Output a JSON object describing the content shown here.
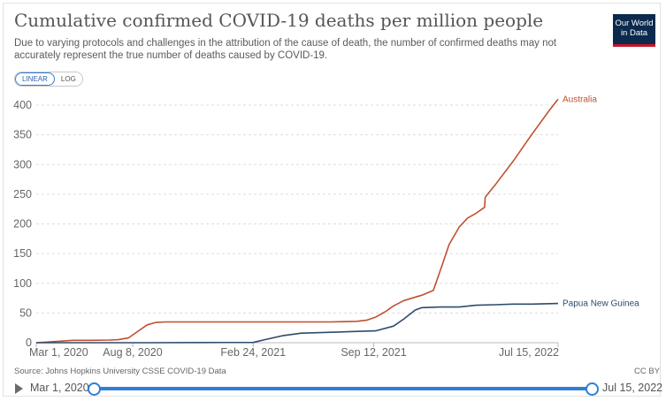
{
  "header": {
    "title": "Cumulative confirmed COVID-19 deaths per million people",
    "subtitle": "Due to varying protocols and challenges in the attribution of the cause of death, the number of confirmed deaths may not accurately represent the true number of deaths caused by COVID-19.",
    "logo_line1": "Our World",
    "logo_line2": "in Data"
  },
  "controls": {
    "linear_label": "LINEAR",
    "log_label": "LOG",
    "active": "linear"
  },
  "footer": {
    "source": "Source: Johns Hopkins University CSSE COVID-19 Data",
    "license": "CC BY"
  },
  "timeline": {
    "start_label": "Mar 1, 2020",
    "end_label": "Jul 15, 2022"
  },
  "colors": {
    "australia": "#c0502e",
    "png": "#2e4b6b",
    "grid": "#dddddd",
    "accent": "#2f7ed8"
  },
  "chart_data": {
    "type": "line",
    "title": "Cumulative confirmed COVID-19 deaths per million people",
    "xlabel": "",
    "ylabel": "",
    "ylim": [
      0,
      400
    ],
    "yticks": [
      "0",
      "50",
      "100",
      "150",
      "200",
      "250",
      "300",
      "350",
      "400"
    ],
    "xticks": [
      "Mar 1, 2020",
      "Aug 8, 2020",
      "Feb 24, 2021",
      "Sep 12, 2021",
      "Jul 15, 2022"
    ],
    "xtick_dates": [
      "2020-03-01",
      "2020-08-08",
      "2021-02-24",
      "2021-09-12",
      "2022-07-15"
    ],
    "x_range": [
      "2020-03-01",
      "2022-07-15"
    ],
    "grid": "horizontal dashed",
    "legend": "inline labels at line ends",
    "series": [
      {
        "name": "Australia",
        "color": "#c0502e",
        "x": [
          "2020-03-01",
          "2020-04-01",
          "2020-05-01",
          "2020-06-01",
          "2020-07-01",
          "2020-07-15",
          "2020-08-01",
          "2020-08-15",
          "2020-09-01",
          "2020-09-15",
          "2020-10-01",
          "2020-11-01",
          "2021-01-01",
          "2021-04-01",
          "2021-07-01",
          "2021-08-15",
          "2021-09-01",
          "2021-09-15",
          "2021-10-01",
          "2021-10-15",
          "2021-11-01",
          "2021-12-01",
          "2021-12-20",
          "2022-01-05",
          "2022-01-15",
          "2022-02-01",
          "2022-02-15",
          "2022-03-01",
          "2022-03-15",
          "2022-03-16",
          "2022-04-01",
          "2022-05-01",
          "2022-06-01",
          "2022-07-01",
          "2022-07-15"
        ],
        "values": [
          0,
          2,
          4,
          4,
          4.5,
          5,
          8,
          18,
          30,
          34,
          35,
          35,
          35,
          35,
          35,
          36,
          38,
          43,
          52,
          62,
          71,
          80,
          88,
          135,
          165,
          195,
          210,
          218,
          228,
          245,
          265,
          305,
          350,
          392,
          410
        ]
      },
      {
        "name": "Papua New Guinea",
        "color": "#2e4b6b",
        "x": [
          "2020-03-01",
          "2020-06-01",
          "2020-09-01",
          "2020-12-01",
          "2021-02-24",
          "2021-03-15",
          "2021-04-15",
          "2021-05-15",
          "2021-06-15",
          "2021-07-15",
          "2021-08-15",
          "2021-09-15",
          "2021-10-15",
          "2021-11-01",
          "2021-11-20",
          "2021-12-01",
          "2022-01-01",
          "2022-02-01",
          "2022-03-01",
          "2022-04-01",
          "2022-05-01",
          "2022-06-01",
          "2022-07-15"
        ],
        "values": [
          0,
          0,
          0,
          0.3,
          0.5,
          5,
          12,
          16,
          17,
          18,
          19,
          20,
          28,
          40,
          55,
          59,
          60,
          60,
          63,
          64,
          65,
          65,
          66
        ]
      }
    ]
  }
}
